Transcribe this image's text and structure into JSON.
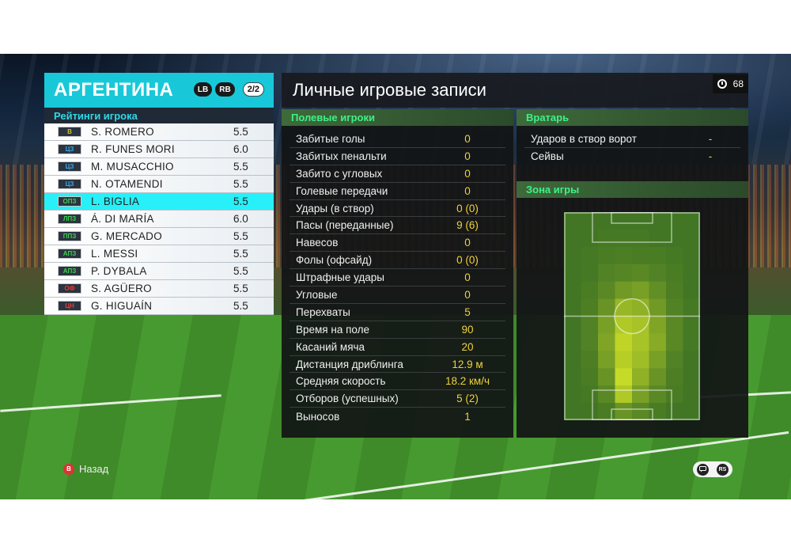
{
  "team": {
    "name": "АРГЕНТИНА",
    "lb_label": "LB",
    "rb_label": "RB",
    "page": "2/2"
  },
  "ratings_label": "Рейтинги игрока",
  "players": [
    {
      "pos": "В",
      "pos_color": "#d8c020",
      "name": "S. ROMERO",
      "rating": "5.5"
    },
    {
      "pos": "ЦЗ",
      "pos_color": "#3aa8e8",
      "name": "R. FUNES MORI",
      "rating": "6.0"
    },
    {
      "pos": "ЦЗ",
      "pos_color": "#3aa8e8",
      "name": "M. MUSACCHIO",
      "rating": "5.5"
    },
    {
      "pos": "ЦЗ",
      "pos_color": "#3aa8e8",
      "name": "N. OTAMENDI",
      "rating": "5.5"
    },
    {
      "pos": "ОПЗ",
      "pos_color": "#40d050",
      "name": "L. BIGLIA",
      "rating": "5.5"
    },
    {
      "pos": "ЛПЗ",
      "pos_color": "#40d050",
      "name": "Á. DI MARÍA",
      "rating": "6.0"
    },
    {
      "pos": "ППЗ",
      "pos_color": "#40d050",
      "name": "G. MERCADO",
      "rating": "5.5"
    },
    {
      "pos": "АПЗ",
      "pos_color": "#40d050",
      "name": "L. MESSI",
      "rating": "5.5"
    },
    {
      "pos": "АПЗ",
      "pos_color": "#40d050",
      "name": "P. DYBALA",
      "rating": "5.5"
    },
    {
      "pos": "ОФ",
      "pos_color": "#e83a3a",
      "name": "S. AGÜERO",
      "rating": "5.5"
    },
    {
      "pos": "ЦН",
      "pos_color": "#e83a3a",
      "name": "G. HIGUAÍN",
      "rating": "5.5"
    }
  ],
  "selected_player_index": 4,
  "main": {
    "title": "Личные игровые записи",
    "timer": "68"
  },
  "outfield": {
    "title": "Полевые игроки",
    "stats": [
      {
        "label": "Забитые голы",
        "value": "0"
      },
      {
        "label": "Забитых пенальти",
        "value": "0"
      },
      {
        "label": "Забито с угловых",
        "value": "0"
      },
      {
        "label": "Голевые передачи",
        "value": "0"
      },
      {
        "label": "Удары (в створ)",
        "value": "0 (0)"
      },
      {
        "label": "Пасы (переданные)",
        "value": "9 (6)"
      },
      {
        "label": "Навесов",
        "value": "0"
      },
      {
        "label": "Фолы (офсайд)",
        "value": "0 (0)"
      },
      {
        "label": "Штрафные удары",
        "value": "0"
      },
      {
        "label": "Угловые",
        "value": "0"
      },
      {
        "label": "Перехваты",
        "value": "5"
      },
      {
        "label": "Время на поле",
        "value": "90"
      },
      {
        "label": "Касаний мяча",
        "value": "20"
      },
      {
        "label": "Дистанция дриблинга",
        "value": "12.9 м"
      },
      {
        "label": "Средняя скорость",
        "value": "18.2 км/ч"
      },
      {
        "label": "Отборов (успешных)",
        "value": "5 (2)"
      },
      {
        "label": "Выносов",
        "value": "1"
      }
    ]
  },
  "goalkeeper": {
    "title": "Вратарь",
    "stats": [
      {
        "label": "Ударов в створ ворот",
        "value": "-"
      },
      {
        "label": "Сейвы",
        "value": "-"
      }
    ]
  },
  "zone": {
    "title": "Зона игры",
    "heatmap_cols": 8,
    "heatmap_rows": 12,
    "heatmap": [
      [
        0.05,
        0.05,
        0.05,
        0.05,
        0.05,
        0.05,
        0.05,
        0.05
      ],
      [
        0.05,
        0.05,
        0.08,
        0.08,
        0.08,
        0.05,
        0.05,
        0.05
      ],
      [
        0.05,
        0.08,
        0.1,
        0.12,
        0.1,
        0.1,
        0.08,
        0.05
      ],
      [
        0.05,
        0.08,
        0.15,
        0.18,
        0.2,
        0.15,
        0.1,
        0.05
      ],
      [
        0.05,
        0.1,
        0.2,
        0.35,
        0.4,
        0.25,
        0.12,
        0.05
      ],
      [
        0.05,
        0.12,
        0.3,
        0.6,
        0.55,
        0.35,
        0.15,
        0.08
      ],
      [
        0.05,
        0.15,
        0.4,
        0.75,
        0.7,
        0.45,
        0.2,
        0.08
      ],
      [
        0.05,
        0.15,
        0.45,
        0.85,
        0.7,
        0.5,
        0.2,
        0.08
      ],
      [
        0.05,
        0.12,
        0.4,
        0.8,
        0.65,
        0.4,
        0.15,
        0.05
      ],
      [
        0.05,
        0.1,
        0.3,
        0.9,
        0.55,
        0.3,
        0.12,
        0.05
      ],
      [
        0.05,
        0.08,
        0.2,
        0.75,
        0.4,
        0.2,
        0.1,
        0.05
      ],
      [
        0.05,
        0.05,
        0.1,
        0.3,
        0.2,
        0.1,
        0.05,
        0.05
      ]
    ]
  },
  "footer": {
    "back_icon": "B",
    "back_label": "Назад",
    "chat_icon": "chat-icon",
    "rs_icon": "RS"
  }
}
